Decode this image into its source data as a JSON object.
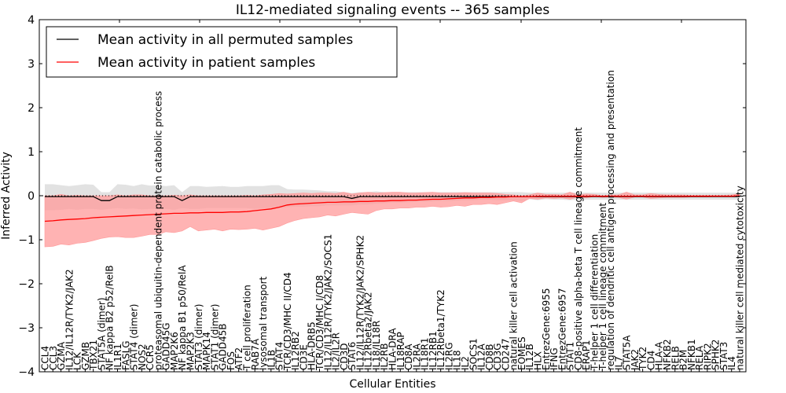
{
  "chart_data": {
    "type": "line",
    "title": "IL12-mediated signaling events -- 365 samples",
    "xlabel": "Cellular Entities",
    "ylabel": "Inferred Activity",
    "ylim": [
      -4,
      4
    ],
    "yticks": [
      -4,
      -3,
      -2,
      -1,
      0,
      1,
      2,
      3,
      4
    ],
    "ytick_labels": [
      "−4",
      "−3",
      "−2",
      "−1",
      "0",
      "1",
      "2",
      "3",
      "4"
    ],
    "grid": false,
    "legend_position": "top-left",
    "legend": [
      {
        "label": "Mean activity in all permuted samples",
        "color": "#000000"
      },
      {
        "label": "Mean activity in patient samples",
        "color": "#ff0000"
      }
    ],
    "colors": {
      "patient_line": "#ff0000",
      "patient_band": "#ff9a9a",
      "permuted_line": "#000000",
      "permuted_band": "#d8d8d8"
    },
    "categories": [
      "CCL4",
      "CCL3",
      "GZMA",
      "IL12/IL12R/TYK2/JAK2",
      "LCK",
      "GZMB",
      "TBX21",
      "STAT5A (dimer)",
      "NF kappa B2 p52/RelB",
      "IL1R1",
      "FASLG",
      "STAT4 (dimer)",
      "NOS2",
      "CCR5",
      "proteasomal ubiquitin-dependent protein catabolic process",
      "GADD45G",
      "MAP2K6",
      "NF kappa B1 p50/RelA",
      "MAP2K3",
      "STAT3 (dimer)",
      "MAPK14",
      "STAT1 (dimer)",
      "GADD45B",
      "FOS",
      "ATF2",
      "T cell proliferation",
      "RAB7A",
      "lysosomal transport",
      "IL1B",
      "STAT4",
      "TCR/CD3/MHC II/CD4",
      "IL12RB2",
      "CD3E",
      "HLA-DRB5",
      "TCR/CD3/MHC I/CD8",
      "IL12/IL12R/TYK2/JAK2/SOCS1",
      "IL2/IL2R",
      "CD3D",
      "STAT6",
      "IL12/IL12R/TYK2/JAK2/SPHK2",
      "IL12Rbeta2/JAK2",
      "IL18/IL18R",
      "IL2RB",
      "HLA-DRA",
      "IL18RAP",
      "CD8A",
      "IL2RA",
      "IL18R1",
      "IL12RB1",
      "IL12Rbeta1/TYK2",
      "IL2RG",
      "IL18",
      "IL2",
      "SOCS1",
      "IL12A",
      "CD8B",
      "CD3G",
      "CD247",
      "natural killer cell activation",
      "EOMES",
      "IL12B",
      "HLX",
      "EntrezGene:6955",
      "IFNG",
      "EntrezGene:6957",
      "STAT1",
      "CD8-positive alpha-beta T cell lineage commitment",
      "ERAP1",
      "T-helper 1 cell differentiation",
      "T-helper 1 cell lineage commitment",
      "regulation of dendritic cell antigen processing and presentation",
      "IL7",
      "STAT5A",
      "JAK2",
      "TYK2",
      "CD4",
      "HLA-A",
      "NFKB2",
      "RELB",
      "B2M",
      "NFKB1",
      "RELA",
      "RIPK2",
      "SPHK2",
      "STAT3",
      "IL4",
      "natural killer cell mediated cytotoxicity"
    ],
    "series": [
      {
        "name": "Mean activity in patient samples",
        "values": [
          -0.58,
          -0.57,
          -0.55,
          -0.54,
          -0.53,
          -0.52,
          -0.5,
          -0.49,
          -0.48,
          -0.47,
          -0.46,
          -0.45,
          -0.44,
          -0.43,
          -0.42,
          -0.41,
          -0.4,
          -0.4,
          -0.39,
          -0.39,
          -0.38,
          -0.38,
          -0.38,
          -0.37,
          -0.37,
          -0.36,
          -0.34,
          -0.32,
          -0.3,
          -0.26,
          -0.21,
          -0.19,
          -0.18,
          -0.17,
          -0.16,
          -0.15,
          -0.15,
          -0.14,
          -0.14,
          -0.13,
          -0.13,
          -0.12,
          -0.12,
          -0.11,
          -0.11,
          -0.1,
          -0.1,
          -0.09,
          -0.08,
          -0.08,
          -0.07,
          -0.06,
          -0.05,
          -0.05,
          -0.04,
          -0.04,
          -0.03,
          -0.03,
          -0.02,
          -0.02,
          -0.02,
          -0.01,
          -0.01,
          -0.01,
          -0.01,
          -0.01,
          -0.01,
          -0.01,
          -0.01,
          -0.01,
          -0.01,
          -0.01,
          -0.01,
          -0.01,
          -0.01,
          -0.01,
          -0.01,
          -0.01,
          -0.01,
          -0.01,
          -0.01,
          -0.01,
          -0.01,
          -0.01,
          -0.01,
          -0.01,
          0.0
        ],
        "lower": [
          -1.16,
          -1.15,
          -1.1,
          -1.12,
          -1.08,
          -1.06,
          -1.02,
          -0.97,
          -0.94,
          -0.93,
          -0.95,
          -0.95,
          -0.92,
          -0.88,
          -0.88,
          -0.82,
          -0.84,
          -0.8,
          -0.7,
          -0.8,
          -0.78,
          -0.76,
          -0.8,
          -0.76,
          -0.77,
          -0.76,
          -0.74,
          -0.78,
          -0.74,
          -0.7,
          -0.62,
          -0.56,
          -0.52,
          -0.5,
          -0.48,
          -0.44,
          -0.46,
          -0.42,
          -0.38,
          -0.4,
          -0.42,
          -0.34,
          -0.3,
          -0.3,
          -0.28,
          -0.28,
          -0.26,
          -0.26,
          -0.24,
          -0.26,
          -0.25,
          -0.22,
          -0.24,
          -0.2,
          -0.2,
          -0.18,
          -0.2,
          -0.16,
          -0.12,
          -0.16,
          -0.06,
          -0.08,
          -0.05,
          -0.06,
          -0.05,
          -0.08,
          -0.03,
          -0.05,
          -0.02,
          -0.04,
          -0.03,
          -0.04,
          -0.08,
          -0.03,
          -0.03,
          -0.06,
          -0.05,
          -0.04,
          -0.04,
          -0.04,
          -0.03,
          -0.03,
          -0.03,
          -0.02,
          -0.02,
          -0.02,
          -0.02
        ],
        "upper": [
          0.0,
          0.0,
          0.03,
          0.0,
          0.01,
          0.0,
          0.0,
          0.0,
          0.0,
          0.02,
          0.0,
          0.02,
          0.02,
          0.0,
          0.0,
          0.0,
          0.01,
          0.0,
          0.02,
          0.0,
          0.0,
          0.0,
          0.0,
          0.0,
          0.0,
          0.01,
          0.0,
          0.02,
          0.03,
          0.05,
          0.04,
          0.05,
          0.06,
          0.05,
          0.06,
          0.06,
          0.05,
          0.08,
          0.04,
          0.06,
          0.08,
          0.06,
          0.07,
          0.08,
          0.08,
          0.06,
          0.06,
          0.07,
          0.08,
          0.06,
          0.06,
          0.06,
          0.07,
          0.06,
          0.06,
          0.06,
          0.05,
          0.03,
          0.02,
          0.0,
          0.02,
          0.06,
          0.03,
          0.03,
          0.02,
          0.08,
          0.02,
          0.04,
          0.03,
          0.0,
          0.02,
          0.02,
          0.08,
          0.02,
          0.02,
          0.05,
          0.03,
          0.02,
          0.02,
          0.02,
          0.01,
          0.01,
          0.01,
          0.01,
          0.01,
          0.02,
          0.05
        ]
      },
      {
        "name": "Mean activity in all permuted samples",
        "values": [
          -0.02,
          -0.02,
          -0.02,
          -0.02,
          -0.02,
          -0.02,
          -0.02,
          -0.11,
          -0.11,
          -0.02,
          -0.02,
          -0.02,
          -0.02,
          -0.02,
          -0.02,
          -0.02,
          -0.02,
          -0.11,
          -0.02,
          -0.02,
          -0.02,
          -0.02,
          -0.02,
          -0.02,
          -0.02,
          -0.02,
          -0.02,
          -0.02,
          -0.02,
          -0.02,
          -0.02,
          -0.02,
          -0.02,
          -0.02,
          -0.02,
          -0.02,
          -0.02,
          -0.02,
          -0.06,
          -0.02,
          -0.02,
          -0.02,
          -0.02,
          -0.02,
          -0.02,
          -0.02,
          -0.02,
          -0.02,
          -0.02,
          -0.02,
          -0.02,
          -0.02,
          -0.02,
          -0.02,
          -0.02,
          -0.02,
          -0.02,
          -0.02,
          -0.02,
          -0.02,
          -0.02,
          -0.02,
          -0.02,
          -0.02,
          -0.02,
          -0.02,
          -0.02,
          -0.02,
          -0.02,
          -0.02,
          -0.02,
          -0.02,
          -0.02,
          -0.02,
          -0.02,
          -0.02,
          -0.02,
          -0.02,
          -0.02,
          -0.02,
          -0.02,
          -0.02,
          -0.02,
          -0.02,
          -0.02,
          -0.02,
          -0.02
        ],
        "lower": [
          -0.33,
          -0.33,
          -0.32,
          -0.3,
          -0.32,
          -0.3,
          -0.3,
          -0.32,
          -0.3,
          -0.28,
          -0.3,
          -0.29,
          -0.31,
          -0.3,
          -0.3,
          -0.3,
          -0.32,
          -0.28,
          -0.3,
          -0.3,
          -0.28,
          -0.28,
          -0.28,
          -0.28,
          -0.28,
          -0.28,
          -0.3,
          -0.28,
          -0.28,
          -0.28,
          -0.26,
          -0.25,
          -0.25,
          -0.24,
          -0.24,
          -0.22,
          -0.22,
          -0.22,
          -0.22,
          -0.2,
          -0.2,
          -0.18,
          -0.17,
          -0.16,
          -0.16,
          -0.15,
          -0.14,
          -0.14,
          -0.13,
          -0.12,
          -0.12,
          -0.11,
          -0.1,
          -0.1,
          -0.09,
          -0.09,
          -0.1,
          -0.1,
          -0.1,
          -0.12,
          -0.08,
          -0.1,
          -0.08,
          -0.09,
          -0.09,
          -0.1,
          -0.09,
          -0.09,
          -0.09,
          -0.09,
          -0.09,
          -0.09,
          -0.09,
          -0.09,
          -0.09,
          -0.09,
          -0.09,
          -0.09,
          -0.09,
          -0.09,
          -0.09,
          -0.09,
          -0.09,
          -0.09,
          -0.09,
          -0.09,
          -0.09
        ],
        "upper": [
          0.26,
          0.26,
          0.24,
          0.22,
          0.24,
          0.26,
          0.25,
          0.08,
          0.08,
          0.26,
          0.25,
          0.22,
          0.26,
          0.23,
          0.24,
          0.22,
          0.24,
          0.08,
          0.22,
          0.22,
          0.2,
          0.21,
          0.22,
          0.2,
          0.2,
          0.22,
          0.22,
          0.22,
          0.24,
          0.24,
          0.15,
          0.14,
          0.14,
          0.13,
          0.12,
          0.1,
          0.1,
          0.08,
          0.06,
          0.08,
          0.08,
          0.1,
          0.08,
          0.08,
          0.08,
          0.08,
          0.08,
          0.08,
          0.08,
          0.08,
          0.08,
          0.08,
          0.08,
          0.08,
          0.08,
          0.08,
          0.08,
          0.08,
          0.08,
          0.08,
          0.07,
          0.07,
          0.07,
          0.07,
          0.07,
          0.07,
          0.07,
          0.07,
          0.07,
          0.07,
          0.07,
          0.07,
          0.07,
          0.07,
          0.07,
          0.07,
          0.07,
          0.07,
          0.07,
          0.07,
          0.07,
          0.07,
          0.07,
          0.07,
          0.07,
          0.07,
          0.07
        ]
      }
    ]
  }
}
